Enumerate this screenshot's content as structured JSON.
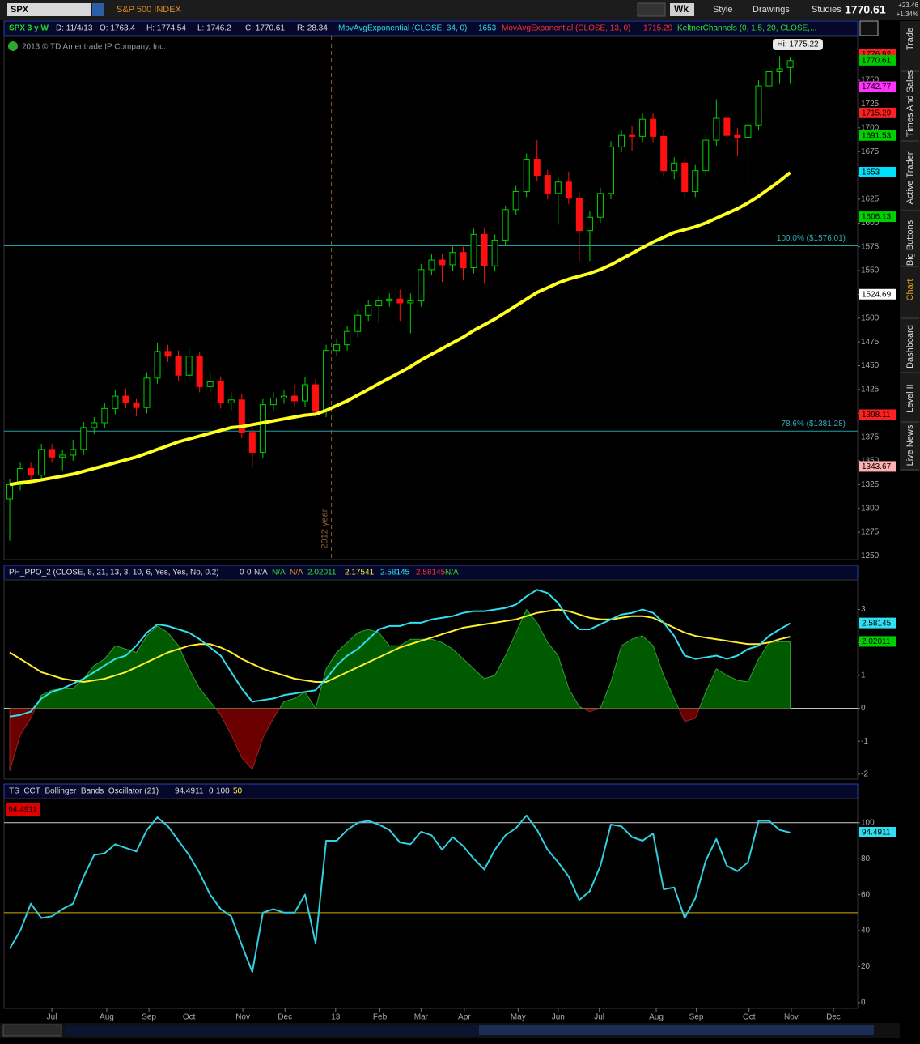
{
  "ui": {
    "symbol": "SPX",
    "symbol_name": "S&P 500 INDEX",
    "aggregation": "Wk",
    "style": "Style",
    "drawings": "Drawings",
    "studies": "Studies",
    "last": "1770.61",
    "change": "+23.46",
    "change_pct": "+1.34%",
    "header": {
      "period": "SPX 3 y W",
      "date": "D: 11/4/13",
      "open": "O: 1763.4",
      "high": "H: 1774.54",
      "low": "L: 1746.2",
      "close": "C: 1770.61",
      "range": "R: 28.34",
      "study1": "MovAvgExponential (CLOSE, 34, 0)",
      "study1_value": "1653",
      "study2": "MovAvgExponential (CLOSE, 13, 0)",
      "study2_value": "1715.29",
      "study3": "KeltnerChannels (0, 1.5, 20, CLOSE,..."
    },
    "copyright": "2013 © TD Ameritrade IP Company, Inc.",
    "hi_label": "Hi: 1775.22",
    "ppo_header": {
      "name": "PH_PPO_2 (CLOSE, 8, 21, 13, 3, 10, 6, Yes, Yes, No, 0.2)",
      "values": [
        "0",
        "0",
        "N/A",
        "N/A",
        "N/A",
        "2.02011",
        "2.17541",
        "2.58145",
        "2.58145",
        "N/A"
      ]
    },
    "osc_header": {
      "name": "TS_CCT_Bollinger_Bands_Oscillator (21)",
      "values": [
        "94.4911",
        "0",
        "100",
        "50"
      ]
    },
    "osc_tag": "94.4911",
    "tabs": [
      "Trade",
      "Times And Sales",
      "Active Trader",
      "Big Buttons",
      "Chart",
      "Dashboard",
      "Level II",
      "Live News"
    ]
  },
  "chart_data": [
    {
      "type": "candlestick",
      "xlim": [
        0.46,
        81.4
      ],
      "ylim": [
        1247,
        1796
      ],
      "open": [
        1310,
        1325,
        1342,
        1335,
        1362,
        1354,
        1356,
        1362,
        1385,
        1390,
        1405,
        1418,
        1411,
        1406,
        1437,
        1465,
        1460,
        1440,
        1460,
        1428,
        1433,
        1411,
        1414,
        1380,
        1359,
        1409,
        1416,
        1418,
        1413,
        1430,
        1402,
        1466,
        1472,
        1486,
        1503,
        1513,
        1518,
        1520,
        1516,
        1518,
        1551,
        1561,
        1556,
        1569,
        1553,
        1588,
        1555,
        1582,
        1614,
        1633,
        1667,
        1650,
        1631,
        1643,
        1626,
        1592,
        1606,
        1631,
        1680,
        1692,
        1691,
        1709,
        1691,
        1655,
        1663,
        1633,
        1655,
        1687,
        1710,
        1692,
        1690,
        1703,
        1744,
        1759,
        1763.4
      ],
      "high": [
        1331,
        1348,
        1348,
        1368,
        1368,
        1362,
        1372,
        1391,
        1396,
        1411,
        1424,
        1426,
        1415,
        1443,
        1474,
        1472,
        1466,
        1470,
        1464,
        1443,
        1439,
        1422,
        1420,
        1386,
        1415,
        1422,
        1424,
        1430,
        1438,
        1436,
        1472,
        1478,
        1492,
        1509,
        1519,
        1524,
        1526,
        1530,
        1526,
        1557,
        1567,
        1567,
        1575,
        1575,
        1594,
        1594,
        1588,
        1618,
        1639,
        1673,
        1687,
        1656,
        1649,
        1654,
        1632,
        1612,
        1637,
        1686,
        1698,
        1702,
        1715,
        1715,
        1697,
        1669,
        1669,
        1661,
        1693,
        1730,
        1716,
        1700,
        1709,
        1750,
        1765,
        1775.22,
        1774.54
      ],
      "low": [
        1266,
        1319,
        1329,
        1329,
        1348,
        1340,
        1350,
        1356,
        1378,
        1384,
        1399,
        1405,
        1397,
        1400,
        1431,
        1454,
        1434,
        1434,
        1422,
        1422,
        1405,
        1403,
        1374,
        1343,
        1353,
        1403,
        1410,
        1407,
        1407,
        1396,
        1396,
        1460,
        1466,
        1480,
        1497,
        1495,
        1512,
        1497,
        1484,
        1512,
        1545,
        1538,
        1550,
        1540,
        1547,
        1536,
        1549,
        1576,
        1608,
        1627,
        1644,
        1625,
        1598,
        1620,
        1560,
        1560,
        1600,
        1625,
        1674,
        1676,
        1685,
        1685,
        1649,
        1646,
        1627,
        1627,
        1649,
        1681,
        1686,
        1670,
        1646,
        1697,
        1738,
        1746,
        1746.2
      ],
      "close": [
        1325,
        1342,
        1335,
        1362,
        1354,
        1356,
        1362,
        1385,
        1390,
        1405,
        1418,
        1411,
        1406,
        1437,
        1465,
        1460,
        1440,
        1460,
        1428,
        1433,
        1411,
        1414,
        1380,
        1359,
        1409,
        1416,
        1418,
        1413,
        1430,
        1402,
        1466,
        1472,
        1486,
        1503,
        1513,
        1518,
        1520,
        1516,
        1518,
        1551,
        1561,
        1556,
        1569,
        1553,
        1588,
        1555,
        1582,
        1614,
        1633,
        1667,
        1650,
        1631,
        1643,
        1626,
        1592,
        1606,
        1631,
        1680,
        1692,
        1691,
        1709,
        1691,
        1655,
        1663,
        1633,
        1655,
        1687,
        1710,
        1692,
        1690,
        1703,
        1744,
        1759,
        1762,
        1770.61
      ],
      "up_color": "#00d000",
      "down_color": "#ff1010",
      "series": [
        {
          "color": "#ffff20",
          "values": [
            1325,
            1327,
            1328,
            1330,
            1332,
            1334,
            1336,
            1339,
            1342,
            1345,
            1348,
            1351,
            1354,
            1358,
            1362,
            1366,
            1370,
            1373,
            1376,
            1379,
            1382,
            1385,
            1386,
            1388,
            1390,
            1392,
            1394,
            1396,
            1398,
            1399,
            1403,
            1408,
            1413,
            1419,
            1425,
            1431,
            1437,
            1443,
            1449,
            1456,
            1462,
            1468,
            1474,
            1480,
            1487,
            1493,
            1499,
            1506,
            1513,
            1520,
            1527,
            1532,
            1537,
            1541,
            1544,
            1547,
            1551,
            1556,
            1562,
            1568,
            1574,
            1580,
            1585,
            1590,
            1593,
            1596,
            1600,
            1605,
            1610,
            1615,
            1621,
            1628,
            1636,
            1644,
            1653
          ]
        }
      ],
      "yticks": [
        1250,
        1275,
        1300,
        1325,
        1350,
        1375,
        1400,
        1425,
        1450,
        1475,
        1500,
        1525,
        1550,
        1575,
        1600,
        1625,
        1650,
        1675,
        1700,
        1725,
        1750
      ],
      "levels": [
        {
          "value": 1576.01,
          "label": "100.0%  ($1576.01)"
        },
        {
          "value": 1381.28,
          "label": "78.6%  ($1381.28)"
        }
      ],
      "vlines": [
        {
          "x": 31.5,
          "label": "2012 year"
        }
      ],
      "price_tags": [
        {
          "value": 1776.92,
          "color": "#ff2020"
        },
        {
          "value": 1770.61,
          "color": "#00c800"
        },
        {
          "value": 1742.77,
          "color": "#ff33ff"
        },
        {
          "value": 1715.29,
          "color": "#ff2020"
        },
        {
          "value": 1691.53,
          "color": "#00d000"
        },
        {
          "value": 1653,
          "color": "#00e0ff"
        },
        {
          "value": 1606.13,
          "color": "#00d000"
        },
        {
          "value": 1524.69,
          "color": "#ffffff"
        },
        {
          "value": 1398.11,
          "color": "#ff2020"
        },
        {
          "value": 1343.67,
          "color": "#ffb0b0"
        }
      ]
    },
    {
      "type": "line",
      "xlim": [
        0.46,
        81.4
      ],
      "ylim": [
        -2.15,
        3.9
      ],
      "yticks": [
        -2,
        -1,
        0,
        1,
        2,
        3
      ],
      "hlines": [
        {
          "value": 0,
          "color": "#dddddd"
        }
      ],
      "series": [
        {
          "kind": "area",
          "color": "#005a00",
          "neg_color": "#6a0000",
          "values": [
            -1.9,
            -0.8,
            -0.3,
            0.4,
            0.55,
            0.6,
            0.6,
            0.9,
            1.3,
            1.5,
            1.9,
            1.8,
            1.7,
            2.2,
            2.5,
            2.3,
            1.9,
            1.2,
            0.6,
            0.2,
            -0.2,
            -0.8,
            -1.5,
            -1.85,
            -0.9,
            -0.3,
            0.2,
            0.3,
            0.5,
            0.0,
            1.2,
            1.7,
            2.0,
            2.3,
            2.4,
            2.3,
            1.9,
            1.9,
            2.1,
            2.1,
            2.1,
            2.0,
            1.8,
            1.5,
            1.2,
            0.9,
            1.0,
            1.6,
            2.3,
            3.0,
            2.6,
            2.0,
            1.6,
            0.6,
            0.05,
            -0.1,
            0.0,
            0.8,
            1.9,
            2.1,
            2.2,
            1.9,
            1.0,
            0.3,
            -0.4,
            -0.3,
            0.5,
            1.2,
            1.0,
            0.85,
            0.8,
            1.5,
            2.0,
            2.02,
            2.02011
          ]
        },
        {
          "color": "#ffee30",
          "values": [
            1.7,
            1.5,
            1.3,
            1.1,
            1.0,
            0.9,
            0.85,
            0.8,
            0.85,
            0.9,
            1.0,
            1.1,
            1.25,
            1.4,
            1.55,
            1.7,
            1.8,
            1.9,
            1.95,
            1.95,
            1.85,
            1.7,
            1.5,
            1.35,
            1.2,
            1.1,
            1.0,
            0.9,
            0.85,
            0.8,
            0.8,
            0.95,
            1.1,
            1.25,
            1.4,
            1.55,
            1.7,
            1.85,
            1.95,
            2.05,
            2.15,
            2.25,
            2.35,
            2.45,
            2.5,
            2.55,
            2.6,
            2.65,
            2.7,
            2.8,
            2.9,
            2.95,
            3.0,
            2.95,
            2.85,
            2.75,
            2.7,
            2.7,
            2.75,
            2.8,
            2.8,
            2.75,
            2.6,
            2.45,
            2.3,
            2.2,
            2.15,
            2.1,
            2.05,
            2.0,
            1.95,
            1.95,
            2.0,
            2.1,
            2.17541
          ]
        },
        {
          "color": "#30e0f0",
          "values": [
            -0.25,
            -0.2,
            -0.1,
            0.3,
            0.5,
            0.6,
            0.75,
            0.9,
            1.1,
            1.3,
            1.5,
            1.6,
            1.9,
            2.3,
            2.55,
            2.5,
            2.4,
            2.3,
            2.1,
            1.85,
            1.6,
            1.1,
            0.6,
            0.2,
            0.25,
            0.3,
            0.4,
            0.45,
            0.5,
            0.55,
            0.9,
            1.3,
            1.6,
            1.8,
            2.1,
            2.4,
            2.5,
            2.5,
            2.6,
            2.6,
            2.7,
            2.75,
            2.8,
            2.9,
            2.95,
            2.95,
            3.0,
            3.05,
            3.15,
            3.4,
            3.6,
            3.5,
            3.2,
            2.7,
            2.4,
            2.4,
            2.55,
            2.7,
            2.85,
            2.9,
            3.0,
            2.9,
            2.6,
            2.2,
            1.6,
            1.5,
            1.55,
            1.6,
            1.5,
            1.6,
            1.8,
            1.9,
            2.2,
            2.4,
            2.58145
          ]
        }
      ],
      "price_tags": [
        {
          "value": 2.58145,
          "color": "#30e0f0"
        },
        {
          "value": 2.02011,
          "color": "#00d000"
        }
      ]
    },
    {
      "type": "line",
      "xlim": [
        0.46,
        81.4
      ],
      "ylim": [
        -3.2,
        112.5
      ],
      "yticks": [
        0,
        20,
        40,
        60,
        80,
        100
      ],
      "hlines": [
        {
          "value": 100,
          "color": "#cccccc"
        },
        {
          "value": 50,
          "color": "#d4b000"
        }
      ],
      "series": [
        {
          "color": "#30d0e0",
          "values": [
            30,
            40,
            55,
            47,
            48,
            52,
            55,
            70,
            82,
            83,
            88,
            86,
            84,
            96,
            103,
            98,
            90,
            82,
            72,
            60,
            52,
            48,
            32,
            17,
            50,
            52,
            50,
            50,
            60,
            33,
            90,
            90,
            96,
            100,
            101,
            99,
            96,
            89,
            88,
            95,
            93,
            85,
            92,
            87,
            80,
            74,
            85,
            93,
            97,
            104,
            96,
            85,
            78,
            70,
            57,
            62,
            76,
            99,
            98,
            92,
            90,
            94,
            63,
            64,
            47,
            58,
            79,
            91,
            76,
            73,
            78,
            101,
            101,
            96,
            94.4911
          ]
        }
      ],
      "price_tags": [
        {
          "value": 94.4911,
          "color": "#30e0f0"
        }
      ],
      "xticks": [
        {
          "value": 4.99,
          "label": "Jul"
        },
        {
          "value": 10.2,
          "label": "Aug"
        },
        {
          "value": 14.2,
          "label": "Sep"
        },
        {
          "value": 18.0,
          "label": "Oct"
        },
        {
          "value": 23.1,
          "label": "Nov"
        },
        {
          "value": 27.1,
          "label": "Dec"
        },
        {
          "value": 31.9,
          "label": "13"
        },
        {
          "value": 36.1,
          "label": "Feb"
        },
        {
          "value": 40.0,
          "label": "Mar"
        },
        {
          "value": 44.1,
          "label": "Apr"
        },
        {
          "value": 49.2,
          "label": "May"
        },
        {
          "value": 53.0,
          "label": "Jun"
        },
        {
          "value": 56.9,
          "label": "Jul"
        },
        {
          "value": 62.3,
          "label": "Aug"
        },
        {
          "value": 66.1,
          "label": "Sep"
        },
        {
          "value": 71.1,
          "label": "Oct"
        },
        {
          "value": 75.1,
          "label": "Nov"
        },
        {
          "value": 79.1,
          "label": "Dec"
        }
      ]
    }
  ]
}
